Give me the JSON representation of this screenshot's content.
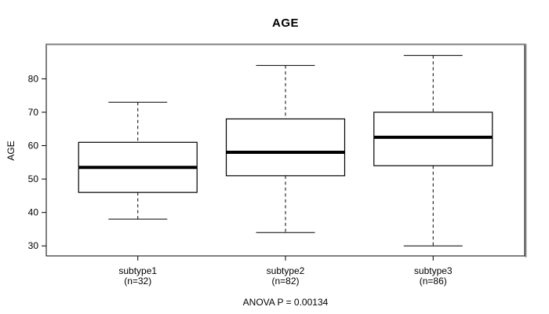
{
  "figure": {
    "title": "AGE",
    "y_axis_label": "AGE",
    "footer": "ANOVA P = 0.00134"
  },
  "chart_data": {
    "type": "boxplot",
    "title": "AGE",
    "ylabel": "AGE",
    "xlabel": "",
    "footer": "ANOVA P = 0.00134",
    "ylim": [
      27,
      90.2
    ],
    "yticks": [
      30,
      40,
      50,
      60,
      70,
      80
    ],
    "grid": false,
    "legend": "none",
    "categories": [
      "subtype1",
      "subtype2",
      "subtype3"
    ],
    "groups": [
      {
        "label": "subtype1",
        "n": 32,
        "n_label": "(n=32)",
        "whisker_low": 38,
        "q1": 46,
        "median": 53.5,
        "q3": 61,
        "whisker_high": 73
      },
      {
        "label": "subtype2",
        "n": 82,
        "n_label": "(n=82)",
        "whisker_low": 34,
        "q1": 51,
        "median": 58,
        "q3": 68,
        "whisker_high": 84
      },
      {
        "label": "subtype3",
        "n": 86,
        "n_label": "(n=86)",
        "whisker_low": 30,
        "q1": 54,
        "median": 62.5,
        "q3": 70,
        "whisker_high": 87
      }
    ],
    "colors": {
      "line": "#000000",
      "box_fill": "#ffffff",
      "border_top": "#818181",
      "border_side": "#9a9a9a",
      "background": "#ffffff"
    }
  }
}
